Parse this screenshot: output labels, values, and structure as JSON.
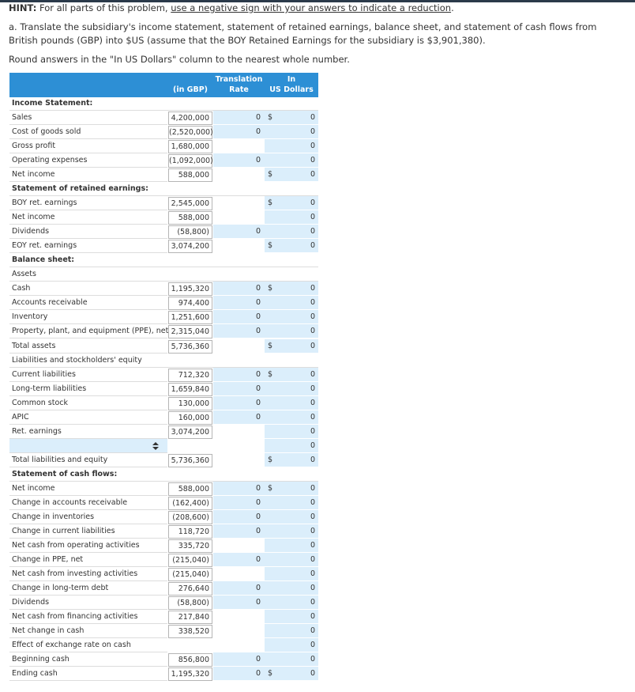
{
  "hint": {
    "label": "HINT:",
    "text": "For all parts of this problem,",
    "link": "use a negative sign with your answers to indicate a reduction",
    "end": "."
  },
  "instructions": [
    "a. Translate the subsidiary's income statement, statement of retained earnings, balance sheet, and statement of cash flows from British pounds (GBP) into $US (assume that the BOY Retained Earnings for the subsidiary is $3,901,380).",
    "Round answers in the \"In US Dollars\" column to the nearest whole number."
  ],
  "table": {
    "header": {
      "gbp": "(in GBP)",
      "rate": [
        "Translation",
        "Rate"
      ],
      "usd": [
        "In",
        "US Dollars"
      ]
    },
    "rows": [
      {
        "kind": "section",
        "label": "Income Statement:"
      },
      {
        "label": "Sales",
        "gbp": "4,200,000",
        "rate": "0",
        "prefix": "$",
        "usd": "0"
      },
      {
        "label": "Cost of goods sold",
        "gbp": "(2,520,000)",
        "rate": "0",
        "usd": "0"
      },
      {
        "label": "Gross profit",
        "gbp": "1,680,000",
        "usd": "0"
      },
      {
        "label": "Operating expenses",
        "gbp": "(1,092,000)",
        "rate": "0",
        "usd": "0"
      },
      {
        "label": "Net income",
        "gbp": "588,000",
        "prefix": "$",
        "usd": "0"
      },
      {
        "kind": "section",
        "label": "Statement of retained earnings:"
      },
      {
        "label": "BOY ret. earnings",
        "gbp": "2,545,000",
        "prefix": "$",
        "usd": "0"
      },
      {
        "label": "Net income",
        "gbp": "588,000",
        "usd": "0"
      },
      {
        "label": "Dividends",
        "gbp": "(58,800)",
        "rate": "0",
        "usd": "0"
      },
      {
        "label": "EOY ret. earnings",
        "gbp": "3,074,200",
        "prefix": "$",
        "usd": "0"
      },
      {
        "kind": "section",
        "label": "Balance sheet:"
      },
      {
        "kind": "subhead",
        "label": "Assets"
      },
      {
        "label": "Cash",
        "gbp": "1,195,320",
        "rate": "0",
        "prefix": "$",
        "usd": "0"
      },
      {
        "label": "Accounts receivable",
        "gbp": "974,400",
        "rate": "0",
        "usd": "0"
      },
      {
        "label": "Inventory",
        "gbp": "1,251,600",
        "rate": "0",
        "usd": "0"
      },
      {
        "label": "Property, plant, and equipment (PPE), net",
        "gbp": "2,315,040",
        "rate": "0",
        "usd": "0"
      },
      {
        "label": "Total assets",
        "gbp": "5,736,360",
        "prefix": "$",
        "usd": "0"
      },
      {
        "kind": "subhead",
        "label": "Liabilities and stockholders' equity"
      },
      {
        "label": "Current liabilities",
        "gbp": "712,320",
        "rate": "0",
        "prefix": "$",
        "usd": "0"
      },
      {
        "label": "Long-term liabilities",
        "gbp": "1,659,840",
        "rate": "0",
        "usd": "0"
      },
      {
        "label": "Common stock",
        "gbp": "130,000",
        "rate": "0",
        "usd": "0"
      },
      {
        "label": "APIC",
        "gbp": "160,000",
        "rate": "0",
        "usd": "0"
      },
      {
        "label": "Ret. earnings",
        "gbp": "3,074,200",
        "usd": "0"
      },
      {
        "kind": "select",
        "usd": "0"
      },
      {
        "label": "Total liabilities and equity",
        "gbp": "5,736,360",
        "prefix": "$",
        "usd": "0"
      },
      {
        "kind": "section",
        "label": "Statement of cash flows:"
      },
      {
        "label": "Net income",
        "gbp": "588,000",
        "rate": "0",
        "prefix": "$",
        "usd": "0"
      },
      {
        "label": "Change in accounts receivable",
        "gbp": "(162,400)",
        "rate": "0",
        "usd": "0"
      },
      {
        "label": "Change in inventories",
        "gbp": "(208,600)",
        "rate": "0",
        "usd": "0"
      },
      {
        "label": "Change in current liabilities",
        "gbp": "118,720",
        "rate": "0",
        "usd": "0"
      },
      {
        "label": "Net cash from operating activities",
        "gbp": "335,720",
        "usd": "0"
      },
      {
        "label": "Change in PPE, net",
        "gbp": "(215,040)",
        "rate": "0",
        "usd": "0"
      },
      {
        "label": "Net cash from investing activities",
        "gbp": "(215,040)",
        "usd": "0"
      },
      {
        "label": "Change in long-term debt",
        "gbp": "276,640",
        "rate": "0",
        "usd": "0"
      },
      {
        "label": "Dividends",
        "gbp": "(58,800)",
        "rate": "0",
        "usd": "0"
      },
      {
        "label": "Net cash from financing activities",
        "gbp": "217,840",
        "usd": "0"
      },
      {
        "label": "Net change in cash",
        "gbp": "338,520",
        "usd": "0"
      },
      {
        "label": "Effect of exchange rate on cash",
        "usd": "0"
      },
      {
        "label": "Beginning cash",
        "gbp": "856,800",
        "rate": "0",
        "usd": "0"
      },
      {
        "label": "Ending cash",
        "gbp": "1,195,320",
        "rate": "0",
        "prefix": "$",
        "usd": "0"
      }
    ]
  }
}
